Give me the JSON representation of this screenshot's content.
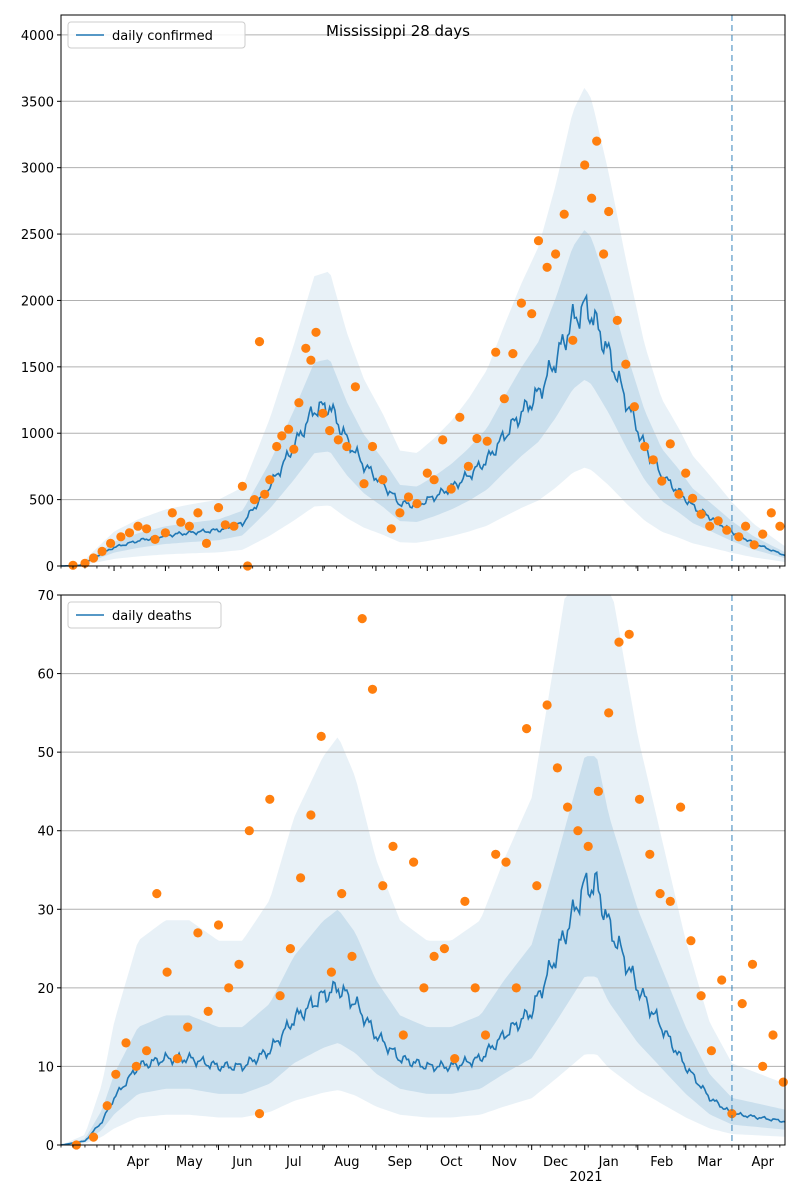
{
  "title": "Mississippi 28 days",
  "colors": {
    "line": "#1f77b4",
    "points": "#ff7f0e",
    "band": "#1f77b4",
    "grid": "#b0b0b0",
    "forecast_line": "#1f77b4"
  },
  "x_axis": {
    "month_labels": [
      "Apr",
      "May",
      "Jun",
      "Jul",
      "Aug",
      "Sep",
      "Oct",
      "Nov",
      "Dec",
      "Jan",
      "Feb",
      "Mar",
      "Apr"
    ],
    "year_label": "2021"
  },
  "chart_data": [
    {
      "type": "line",
      "title": "Mississippi 28 days",
      "xlabel": "",
      "ylabel": "",
      "xlim": [
        "2020-03-01",
        "2021-04-28"
      ],
      "ylim": [
        0,
        4150
      ],
      "yticks": [
        0,
        500,
        1000,
        1500,
        2000,
        2500,
        3000,
        3500,
        4000
      ],
      "grid": "horizontal",
      "legend_position": "top-left",
      "forecast_start": "2021-03-28",
      "series": [
        {
          "name": "daily confirmed",
          "type": "line",
          "color": "#1f77b4"
        }
      ],
      "median_keypoints": [
        [
          "2020-03-01",
          0
        ],
        [
          "2020-03-12",
          5
        ],
        [
          "2020-03-20",
          60
        ],
        [
          "2020-04-01",
          140
        ],
        [
          "2020-04-15",
          190
        ],
        [
          "2020-05-01",
          230
        ],
        [
          "2020-05-15",
          250
        ],
        [
          "2020-06-01",
          270
        ],
        [
          "2020-06-15",
          320
        ],
        [
          "2020-07-01",
          600
        ],
        [
          "2020-07-15",
          900
        ],
        [
          "2020-07-27",
          1180
        ],
        [
          "2020-08-05",
          1200
        ],
        [
          "2020-08-15",
          950
        ],
        [
          "2020-08-25",
          760
        ],
        [
          "2020-09-05",
          620
        ],
        [
          "2020-09-15",
          470
        ],
        [
          "2020-09-25",
          460
        ],
        [
          "2020-10-05",
          520
        ],
        [
          "2020-10-15",
          590
        ],
        [
          "2020-10-25",
          680
        ],
        [
          "2020-11-05",
          800
        ],
        [
          "2020-11-15",
          980
        ],
        [
          "2020-11-25",
          1150
        ],
        [
          "2020-12-05",
          1300
        ],
        [
          "2020-12-15",
          1550
        ],
        [
          "2020-12-25",
          1850
        ],
        [
          "2021-01-01",
          1950
        ],
        [
          "2021-01-05",
          1900
        ],
        [
          "2021-01-15",
          1600
        ],
        [
          "2021-01-25",
          1250
        ],
        [
          "2021-02-05",
          900
        ],
        [
          "2021-02-15",
          680
        ],
        [
          "2021-02-25",
          560
        ],
        [
          "2021-03-05",
          450
        ],
        [
          "2021-03-15",
          370
        ],
        [
          "2021-03-28",
          260
        ],
        [
          "2021-04-10",
          170
        ],
        [
          "2021-04-28",
          80
        ]
      ],
      "band_outer_factor_low": 0.38,
      "band_outer_factor_high": 1.85,
      "band_inner_factor_low": 0.72,
      "band_inner_factor_high": 1.3,
      "observed_points": [
        [
          "2020-03-08",
          5
        ],
        [
          "2020-03-15",
          20
        ],
        [
          "2020-03-20",
          60
        ],
        [
          "2020-03-25",
          110
        ],
        [
          "2020-03-30",
          170
        ],
        [
          "2020-04-05",
          220
        ],
        [
          "2020-04-10",
          250
        ],
        [
          "2020-04-15",
          300
        ],
        [
          "2020-04-20",
          280
        ],
        [
          "2020-04-25",
          200
        ],
        [
          "2020-05-01",
          250
        ],
        [
          "2020-05-05",
          400
        ],
        [
          "2020-05-10",
          330
        ],
        [
          "2020-05-15",
          300
        ],
        [
          "2020-05-20",
          400
        ],
        [
          "2020-05-25",
          170
        ],
        [
          "2020-06-01",
          440
        ],
        [
          "2020-06-05",
          310
        ],
        [
          "2020-06-10",
          300
        ],
        [
          "2020-06-15",
          600
        ],
        [
          "2020-06-18",
          0
        ],
        [
          "2020-06-22",
          500
        ],
        [
          "2020-06-25",
          1690
        ],
        [
          "2020-06-28",
          540
        ],
        [
          "2020-07-01",
          650
        ],
        [
          "2020-07-05",
          900
        ],
        [
          "2020-07-08",
          980
        ],
        [
          "2020-07-12",
          1030
        ],
        [
          "2020-07-15",
          880
        ],
        [
          "2020-07-18",
          1230
        ],
        [
          "2020-07-22",
          1640
        ],
        [
          "2020-07-25",
          1550
        ],
        [
          "2020-07-28",
          1760
        ],
        [
          "2020-08-01",
          1150
        ],
        [
          "2020-08-05",
          1020
        ],
        [
          "2020-08-10",
          950
        ],
        [
          "2020-08-15",
          900
        ],
        [
          "2020-08-20",
          1350
        ],
        [
          "2020-08-25",
          620
        ],
        [
          "2020-08-30",
          900
        ],
        [
          "2020-09-05",
          650
        ],
        [
          "2020-09-10",
          280
        ],
        [
          "2020-09-15",
          400
        ],
        [
          "2020-09-20",
          520
        ],
        [
          "2020-09-25",
          470
        ],
        [
          "2020-10-01",
          700
        ],
        [
          "2020-10-05",
          650
        ],
        [
          "2020-10-10",
          950
        ],
        [
          "2020-10-15",
          580
        ],
        [
          "2020-10-20",
          1120
        ],
        [
          "2020-10-25",
          750
        ],
        [
          "2020-10-30",
          960
        ],
        [
          "2020-11-05",
          940
        ],
        [
          "2020-11-10",
          1610
        ],
        [
          "2020-11-15",
          1260
        ],
        [
          "2020-11-20",
          1600
        ],
        [
          "2020-11-25",
          1980
        ],
        [
          "2020-12-01",
          1900
        ],
        [
          "2020-12-05",
          2450
        ],
        [
          "2020-12-10",
          2250
        ],
        [
          "2020-12-15",
          2350
        ],
        [
          "2020-12-20",
          2650
        ],
        [
          "2020-12-25",
          1700
        ],
        [
          "2021-01-01",
          3020
        ],
        [
          "2021-01-05",
          2770
        ],
        [
          "2021-01-08",
          3200
        ],
        [
          "2021-01-12",
          2350
        ],
        [
          "2021-01-15",
          2670
        ],
        [
          "2021-01-20",
          1850
        ],
        [
          "2021-01-25",
          1520
        ],
        [
          "2021-01-30",
          1200
        ],
        [
          "2021-02-05",
          900
        ],
        [
          "2021-02-10",
          800
        ],
        [
          "2021-02-15",
          640
        ],
        [
          "2021-02-20",
          920
        ],
        [
          "2021-02-25",
          540
        ],
        [
          "2021-03-01",
          700
        ],
        [
          "2021-03-05",
          510
        ],
        [
          "2021-03-10",
          390
        ],
        [
          "2021-03-15",
          300
        ],
        [
          "2021-03-20",
          340
        ],
        [
          "2021-03-25",
          270
        ],
        [
          "2021-04-01",
          220
        ],
        [
          "2021-04-05",
          300
        ],
        [
          "2021-04-10",
          160
        ],
        [
          "2021-04-15",
          240
        ],
        [
          "2021-04-20",
          400
        ],
        [
          "2021-04-25",
          300
        ]
      ]
    },
    {
      "type": "line",
      "title": "",
      "xlabel": "",
      "ylabel": "",
      "xlim": [
        "2020-03-01",
        "2021-04-28"
      ],
      "ylim": [
        0,
        70
      ],
      "yticks": [
        0,
        10,
        20,
        30,
        40,
        50,
        60,
        70
      ],
      "grid": "horizontal",
      "legend_position": "top-left",
      "forecast_start": "2021-03-28",
      "series": [
        {
          "name": "daily deaths",
          "type": "line",
          "color": "#1f77b4"
        }
      ],
      "median_keypoints": [
        [
          "2020-03-01",
          0
        ],
        [
          "2020-03-15",
          0.5
        ],
        [
          "2020-03-25",
          3
        ],
        [
          "2020-04-01",
          6
        ],
        [
          "2020-04-15",
          10
        ],
        [
          "2020-05-01",
          11
        ],
        [
          "2020-05-15",
          11
        ],
        [
          "2020-06-01",
          10
        ],
        [
          "2020-06-15",
          10
        ],
        [
          "2020-07-01",
          12
        ],
        [
          "2020-07-15",
          16
        ],
        [
          "2020-08-01",
          19
        ],
        [
          "2020-08-10",
          20
        ],
        [
          "2020-08-20",
          18
        ],
        [
          "2020-09-01",
          14
        ],
        [
          "2020-09-15",
          11
        ],
        [
          "2020-10-01",
          10
        ],
        [
          "2020-10-15",
          10
        ],
        [
          "2020-11-01",
          11
        ],
        [
          "2020-11-15",
          14
        ],
        [
          "2020-12-01",
          17
        ],
        [
          "2020-12-15",
          24
        ],
        [
          "2021-01-01",
          33
        ],
        [
          "2021-01-08",
          33
        ],
        [
          "2021-01-15",
          28
        ],
        [
          "2021-02-01",
          20
        ],
        [
          "2021-02-15",
          15
        ],
        [
          "2021-03-01",
          10
        ],
        [
          "2021-03-15",
          6
        ],
        [
          "2021-03-28",
          4
        ],
        [
          "2021-04-28",
          3
        ]
      ],
      "band_outer_factor_low": 0.35,
      "band_outer_factor_high": 2.6,
      "band_inner_factor_low": 0.65,
      "band_inner_factor_high": 1.5,
      "observed_points": [
        [
          "2020-03-10",
          0
        ],
        [
          "2020-03-20",
          1
        ],
        [
          "2020-03-28",
          5
        ],
        [
          "2020-04-02",
          9
        ],
        [
          "2020-04-08",
          13
        ],
        [
          "2020-04-14",
          10
        ],
        [
          "2020-04-20",
          12
        ],
        [
          "2020-04-26",
          32
        ],
        [
          "2020-05-02",
          22
        ],
        [
          "2020-05-08",
          11
        ],
        [
          "2020-05-14",
          15
        ],
        [
          "2020-05-20",
          27
        ],
        [
          "2020-05-26",
          17
        ],
        [
          "2020-06-01",
          28
        ],
        [
          "2020-06-07",
          20
        ],
        [
          "2020-06-13",
          23
        ],
        [
          "2020-06-19",
          40
        ],
        [
          "2020-06-25",
          4
        ],
        [
          "2020-07-01",
          44
        ],
        [
          "2020-07-07",
          19
        ],
        [
          "2020-07-13",
          25
        ],
        [
          "2020-07-19",
          34
        ],
        [
          "2020-07-25",
          42
        ],
        [
          "2020-07-31",
          52
        ],
        [
          "2020-08-06",
          22
        ],
        [
          "2020-08-12",
          32
        ],
        [
          "2020-08-18",
          24
        ],
        [
          "2020-08-24",
          67
        ],
        [
          "2020-08-30",
          58
        ],
        [
          "2020-09-05",
          33
        ],
        [
          "2020-09-11",
          38
        ],
        [
          "2020-09-17",
          14
        ],
        [
          "2020-09-23",
          36
        ],
        [
          "2020-09-29",
          20
        ],
        [
          "2020-10-05",
          24
        ],
        [
          "2020-10-11",
          25
        ],
        [
          "2020-10-17",
          11
        ],
        [
          "2020-10-23",
          31
        ],
        [
          "2020-10-29",
          20
        ],
        [
          "2020-11-04",
          14
        ],
        [
          "2020-11-10",
          37
        ],
        [
          "2020-11-16",
          36
        ],
        [
          "2020-11-22",
          20
        ],
        [
          "2020-11-28",
          53
        ],
        [
          "2020-12-04",
          33
        ],
        [
          "2020-12-10",
          56
        ],
        [
          "2020-12-16",
          48
        ],
        [
          "2020-12-22",
          43
        ],
        [
          "2020-12-28",
          40
        ],
        [
          "2021-01-03",
          38
        ],
        [
          "2021-01-09",
          45
        ],
        [
          "2021-01-15",
          55
        ],
        [
          "2021-01-21",
          64
        ],
        [
          "2021-01-27",
          65
        ],
        [
          "2021-02-02",
          44
        ],
        [
          "2021-02-08",
          37
        ],
        [
          "2021-02-14",
          32
        ],
        [
          "2021-02-20",
          31
        ],
        [
          "2021-02-26",
          43
        ],
        [
          "2021-03-04",
          26
        ],
        [
          "2021-03-10",
          19
        ],
        [
          "2021-03-16",
          12
        ],
        [
          "2021-03-22",
          21
        ],
        [
          "2021-03-28",
          4
        ],
        [
          "2021-04-03",
          18
        ],
        [
          "2021-04-09",
          23
        ],
        [
          "2021-04-15",
          10
        ],
        [
          "2021-04-21",
          14
        ],
        [
          "2021-04-27",
          8
        ]
      ]
    }
  ]
}
